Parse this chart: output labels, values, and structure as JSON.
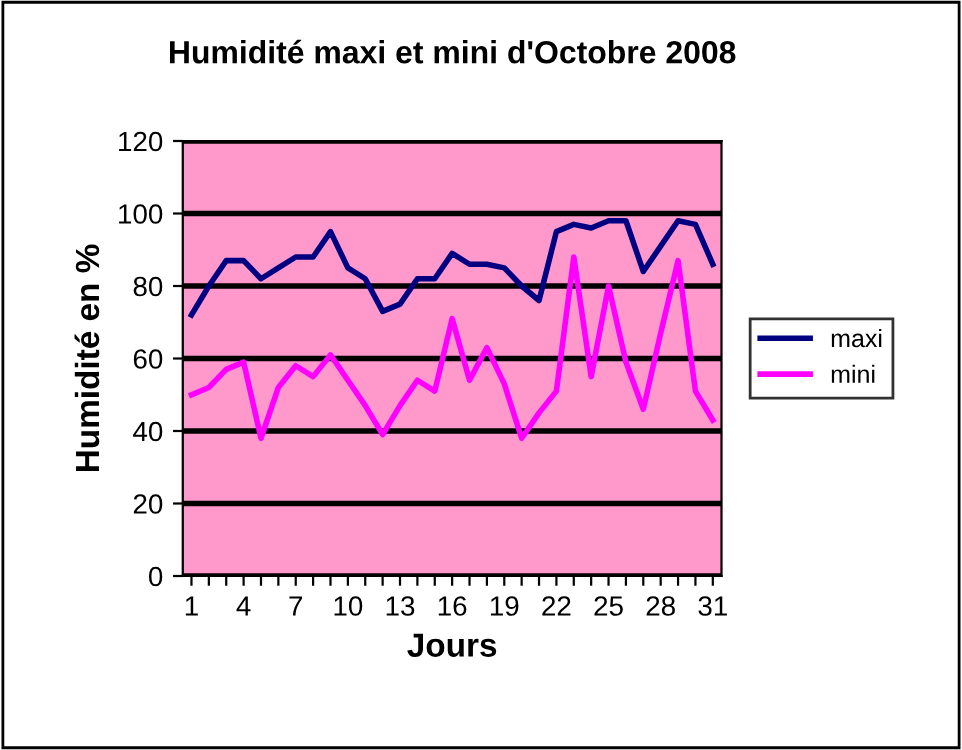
{
  "chart_data": {
    "type": "line",
    "title": "Humidité maxi et mini d'Octobre 2008",
    "xlabel": "Jours",
    "ylabel": "Humidité en %",
    "categories": [
      "1",
      null,
      null,
      "4",
      null,
      null,
      "7",
      null,
      null,
      "10",
      null,
      null,
      "13",
      null,
      null,
      "16",
      null,
      null,
      "19",
      null,
      null,
      "22",
      null,
      null,
      "25",
      null,
      null,
      "28",
      null,
      null,
      "31"
    ],
    "series": [
      {
        "name": "maxi",
        "color": "#000080",
        "values": [
          72,
          80,
          87,
          87,
          82,
          85,
          88,
          88,
          95,
          85,
          82,
          73,
          75,
          82,
          82,
          89,
          86,
          86,
          85,
          80,
          76,
          95,
          97,
          96,
          98,
          98,
          84,
          91,
          98,
          97,
          86
        ]
      },
      {
        "name": "mini",
        "color": "#ff00ff",
        "values": [
          50,
          52,
          57,
          59,
          38,
          52,
          58,
          55,
          61,
          54,
          47,
          39,
          47,
          54,
          51,
          71,
          54,
          63,
          53,
          38,
          45,
          51,
          88,
          55,
          80,
          59,
          46,
          67,
          87,
          51,
          43
        ]
      }
    ],
    "ylim": [
      0,
      120
    ],
    "yticks": [
      0,
      20,
      40,
      60,
      80,
      100,
      120
    ],
    "grid": "y",
    "legend": "right",
    "marker": "none",
    "line_style": "solid"
  }
}
